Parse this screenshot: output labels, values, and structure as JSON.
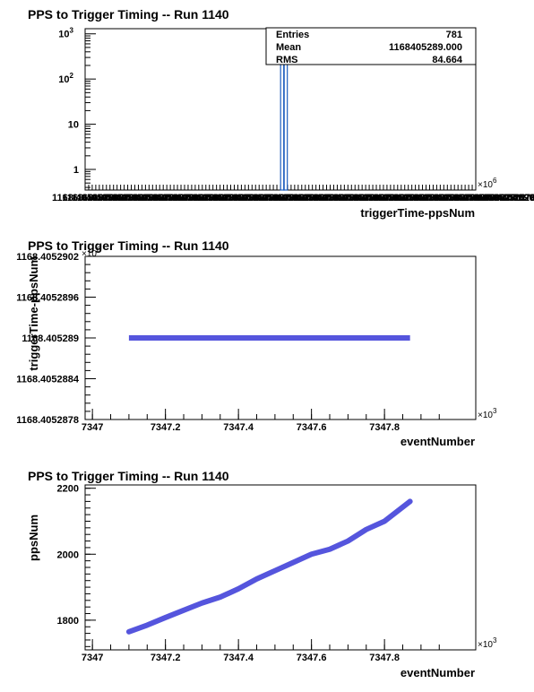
{
  "chart_data": [
    {
      "type": "histogram",
      "title": "PPS to Trigger Timing -- Run 1140",
      "xlabel": "triggerTime-ppsNum",
      "ylabel": "",
      "x_multiplier": "×10",
      "x_multiplier_exp": "6",
      "y_scale": "log",
      "ylim": [
        0.35,
        1300
      ],
      "y_ticks": [
        {
          "value": 1,
          "label": "1"
        },
        {
          "value": 10,
          "label": "10"
        },
        {
          "value": 100,
          "label": "10",
          "exp": "2"
        },
        {
          "value": 1000,
          "label": "10",
          "exp": "3"
        }
      ],
      "x_tick_labels_overlapping": [
        "1168.4052878",
        "1168.4052902"
      ],
      "bars": [
        {
          "x_pos": 0.505,
          "value": 220
        },
        {
          "x_pos": 0.513,
          "value": 560
        }
      ],
      "stats": {
        "rows": [
          {
            "label": "Entries",
            "value": "781"
          },
          {
            "label": "Mean",
            "value": "1168405289.000"
          },
          {
            "label": "RMS",
            "value": "84.664"
          }
        ]
      },
      "bar_color": "#1f5fbf"
    },
    {
      "type": "scatter",
      "title": "PPS to Trigger Timing -- Run 1140",
      "xlabel": "eventNumber",
      "ylabel": "triggerTime-ppsNum",
      "x_multiplier": "×10",
      "x_multiplier_exp": "3",
      "y_multiplier": "×10",
      "y_multiplier_exp": "6",
      "xlim": [
        7346.98,
        7348.05
      ],
      "ylim": [
        1168.4052878,
        1168.4052902
      ],
      "x_ticks": [
        {
          "value": 7347,
          "label": "7347"
        },
        {
          "value": 7347.2,
          "label": "7347.2"
        },
        {
          "value": 7347.4,
          "label": "7347.4"
        },
        {
          "value": 7347.6,
          "label": "7347.6"
        },
        {
          "value": 7347.8,
          "label": "7347.8"
        }
      ],
      "y_ticks": [
        {
          "value": 1168.4052878,
          "label": "1168.4052878"
        },
        {
          "value": 1168.4052884,
          "label": "1168.4052884"
        },
        {
          "value": 1168.405289,
          "label": "1168.405289"
        },
        {
          "value": 1168.4052896,
          "label": "1168.4052896"
        },
        {
          "value": 1168.4052902,
          "label": "1168.4052902"
        }
      ],
      "series": [
        {
          "x_start": 7347.1,
          "x_end": 7347.87,
          "y": 1168.405289
        }
      ],
      "marker_color": "#5555dd"
    },
    {
      "type": "scatter",
      "title": "PPS to Trigger Timing -- Run 1140",
      "xlabel": "eventNumber",
      "ylabel": "ppsNum",
      "x_multiplier": "×10",
      "x_multiplier_exp": "3",
      "xlim": [
        7346.98,
        7348.05
      ],
      "ylim": [
        1710,
        2210
      ],
      "x_ticks": [
        {
          "value": 7347,
          "label": "7347"
        },
        {
          "value": 7347.2,
          "label": "7347.2"
        },
        {
          "value": 7347.4,
          "label": "7347.4"
        },
        {
          "value": 7347.6,
          "label": "7347.6"
        },
        {
          "value": 7347.8,
          "label": "7347.8"
        }
      ],
      "y_ticks": [
        {
          "value": 1800,
          "label": "1800"
        },
        {
          "value": 2000,
          "label": "2000"
        },
        {
          "value": 2200,
          "label": "2200"
        }
      ],
      "series": [
        {
          "points": [
            [
              7347.1,
              1765
            ],
            [
              7347.15,
              1785
            ],
            [
              7347.2,
              1808
            ],
            [
              7347.25,
              1830
            ],
            [
              7347.3,
              1852
            ],
            [
              7347.35,
              1870
            ],
            [
              7347.4,
              1895
            ],
            [
              7347.45,
              1925
            ],
            [
              7347.5,
              1950
            ],
            [
              7347.55,
              1975
            ],
            [
              7347.6,
              2000
            ],
            [
              7347.65,
              2015
            ],
            [
              7347.7,
              2040
            ],
            [
              7347.75,
              2075
            ],
            [
              7347.8,
              2100
            ],
            [
              7347.87,
              2160
            ]
          ]
        }
      ],
      "marker_color": "#5555dd"
    }
  ]
}
